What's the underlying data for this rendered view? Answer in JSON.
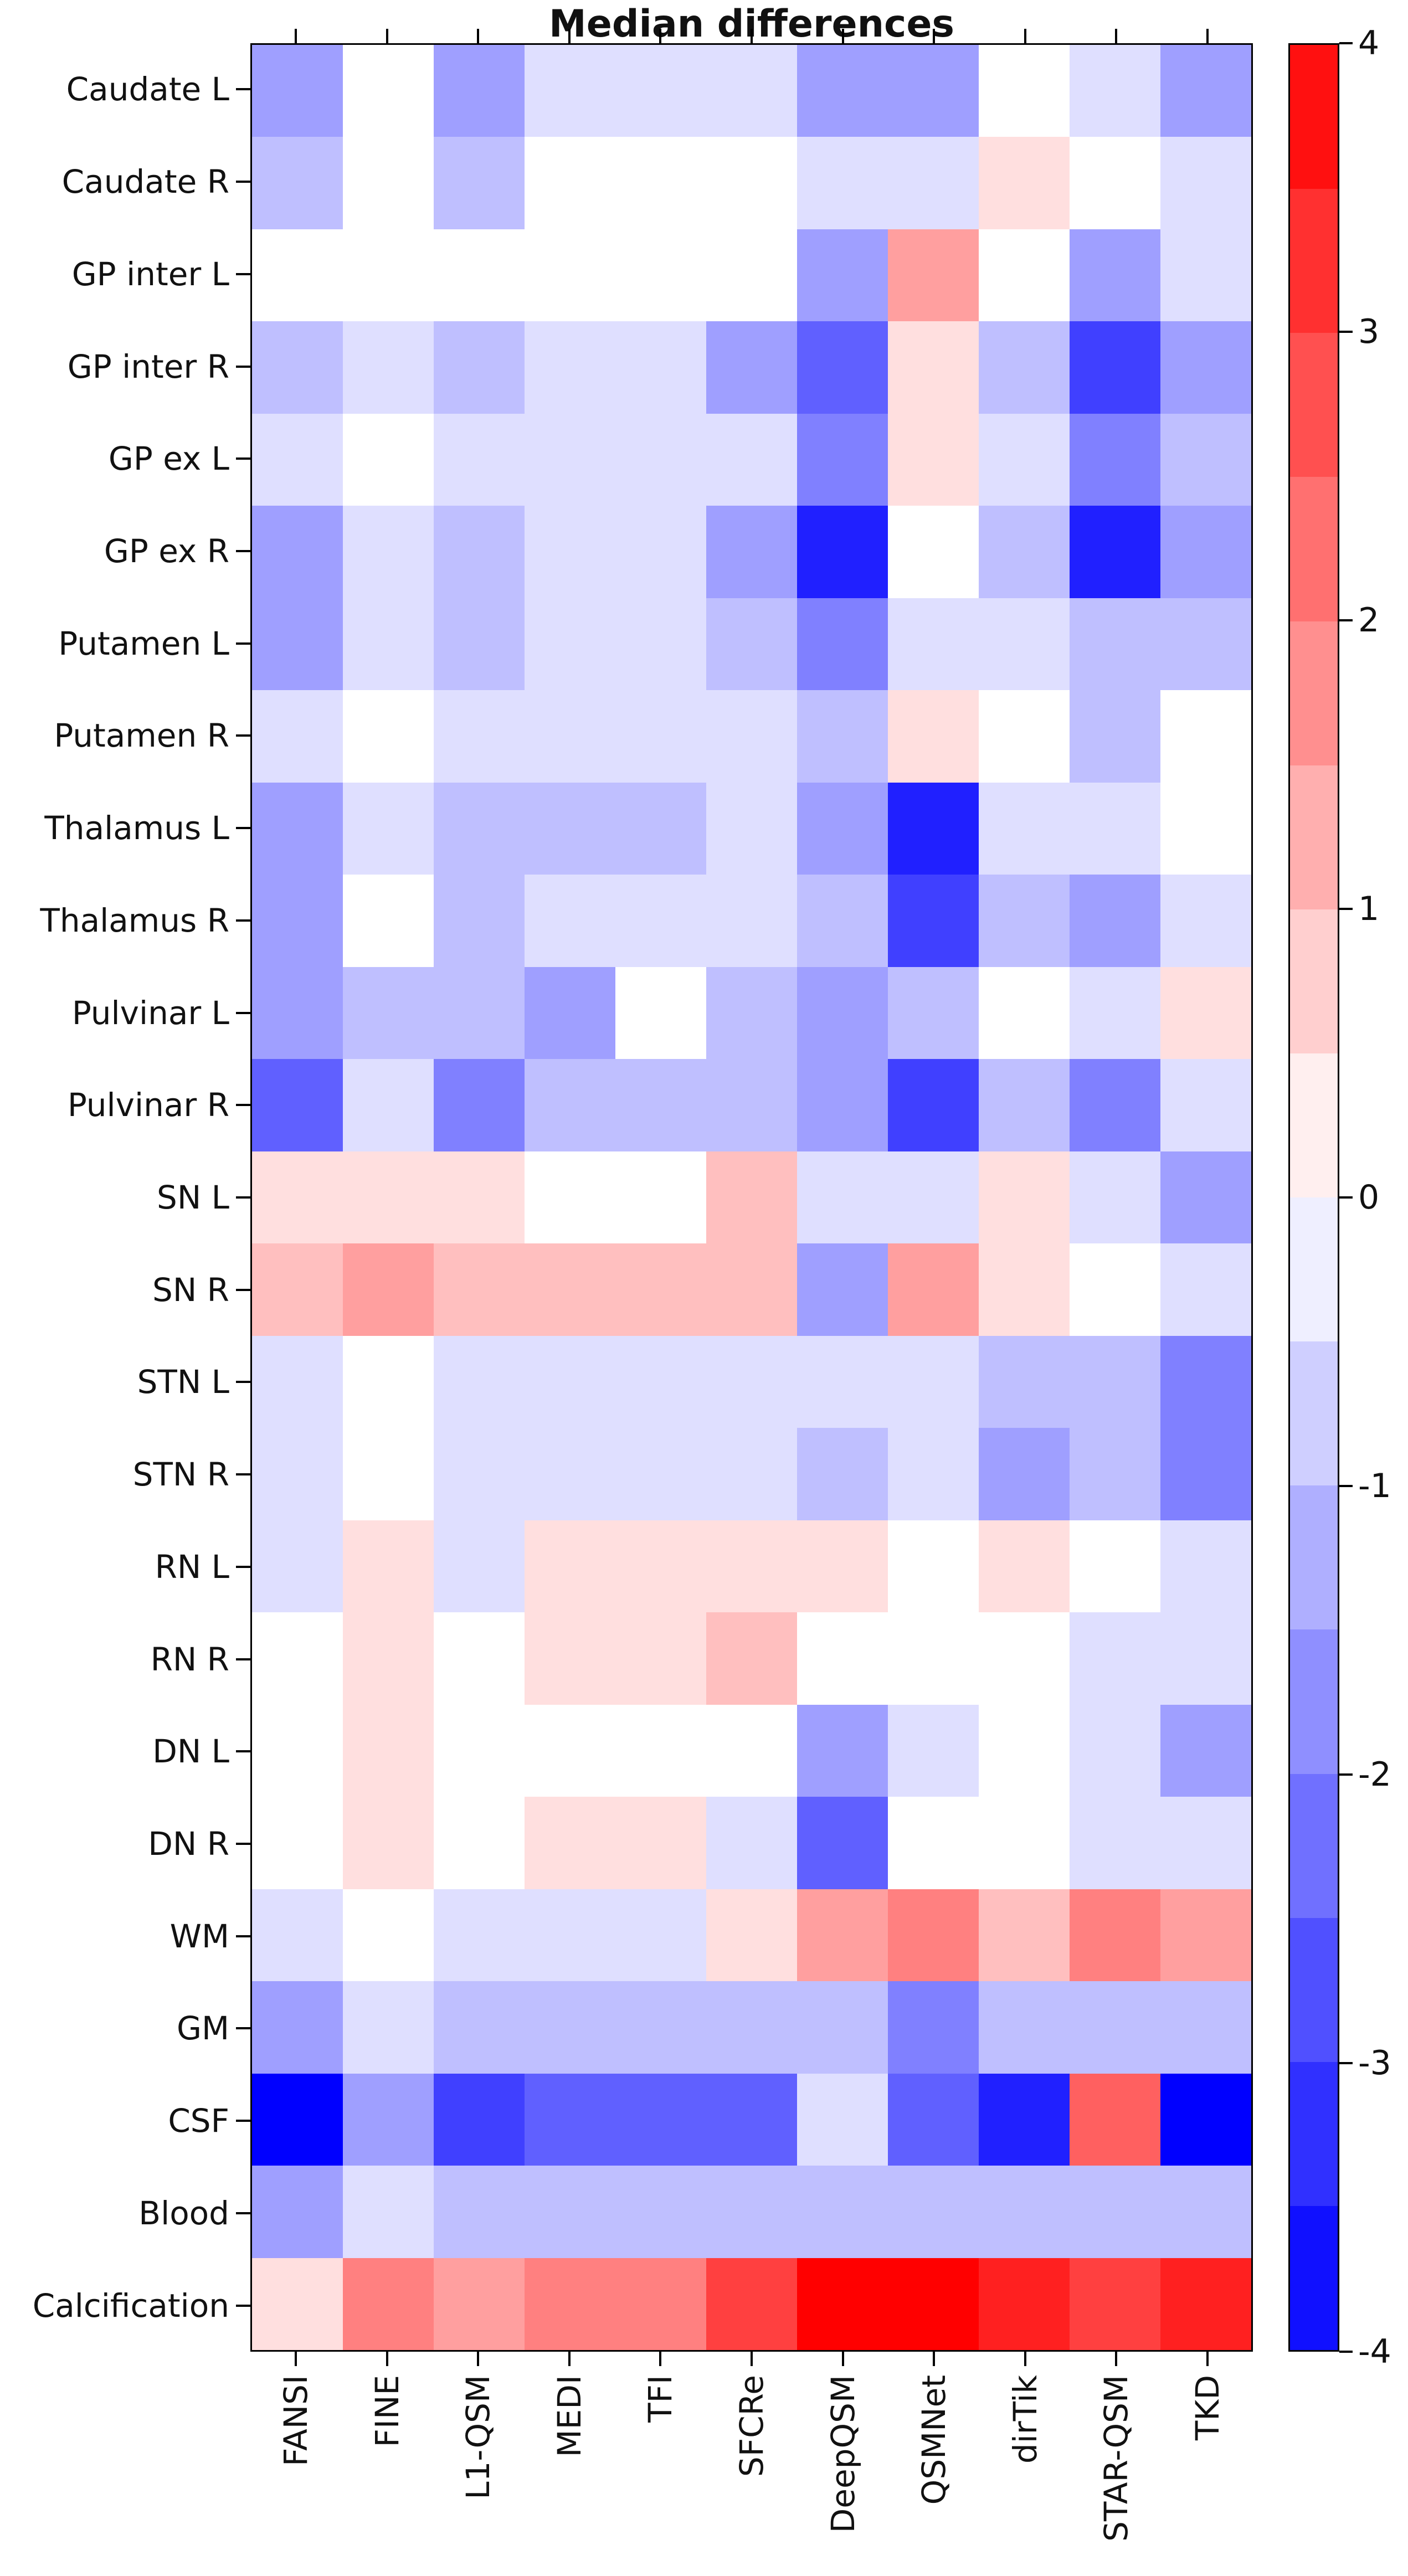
{
  "title": "Median differences",
  "chart_data": {
    "type": "heatmap",
    "title": "Median differences",
    "columns": [
      "FANSI",
      "FINE",
      "L1-QSM",
      "MEDI",
      "TFI",
      "SFCRe",
      "DeepQSM",
      "QSMNet",
      "dirTik",
      "STAR-QSM",
      "TKD"
    ],
    "rows": [
      "Caudate L",
      "Caudate R",
      "GP inter L",
      "GP inter R",
      "GP ex L",
      "GP ex R",
      "Putamen L",
      "Putamen R",
      "Thalamus L",
      "Thalamus R",
      "Pulvinar L",
      "Pulvinar R",
      "SN L",
      "SN R",
      "STN L",
      "STN R",
      "RN L",
      "RN R",
      "DN L",
      "DN R",
      "WM",
      "GM",
      "CSF",
      "Blood",
      "Calcification"
    ],
    "values": [
      [
        -1.5,
        0,
        -1.5,
        -0.5,
        -0.5,
        -0.5,
        -1.5,
        -1.5,
        0,
        -0.5,
        -1.5
      ],
      [
        -1,
        0,
        -1,
        0,
        0,
        0,
        -0.5,
        -0.5,
        0.5,
        0,
        -0.5
      ],
      [
        0,
        0,
        0,
        0,
        0,
        0,
        -1.5,
        1.5,
        0,
        -1.5,
        -0.5
      ],
      [
        -1,
        -0.5,
        -1,
        -0.5,
        -0.5,
        -1.5,
        -2.5,
        0.5,
        -1,
        -3,
        -1.5
      ],
      [
        -0.5,
        0,
        -0.5,
        -0.5,
        -0.5,
        -0.5,
        -2,
        0.5,
        -0.5,
        -2,
        -1
      ],
      [
        -1.5,
        -0.5,
        -1,
        -0.5,
        -0.5,
        -1.5,
        -3.5,
        0,
        -1,
        -3.5,
        -1.5
      ],
      [
        -1.5,
        -0.5,
        -1,
        -0.5,
        -0.5,
        -1,
        -2,
        -0.5,
        -0.5,
        -1,
        -1
      ],
      [
        -0.5,
        0,
        -0.5,
        -0.5,
        -0.5,
        -0.5,
        -1,
        0.5,
        0,
        -1,
        0
      ],
      [
        -1.5,
        -0.5,
        -1,
        -1,
        -1,
        -0.5,
        -1.5,
        -3.5,
        -0.5,
        -0.5,
        0
      ],
      [
        -1.5,
        0,
        -1,
        -0.5,
        -0.5,
        -0.5,
        -1,
        -3,
        -1,
        -1.5,
        -0.5
      ],
      [
        -1.5,
        -1,
        -1,
        -1.5,
        0,
        -1,
        -1.5,
        -1,
        0,
        -0.5,
        0.5
      ],
      [
        -2.5,
        -0.5,
        -2,
        -1,
        -1,
        -1,
        -1.5,
        -3,
        -1,
        -2,
        -0.5
      ],
      [
        0.5,
        0.5,
        0.5,
        0,
        0,
        1,
        -0.5,
        -0.5,
        0.5,
        -0.5,
        -1.5
      ],
      [
        1,
        1.5,
        1,
        1,
        1,
        1,
        -1.5,
        1.5,
        0.5,
        0,
        -0.5
      ],
      [
        -0.5,
        0,
        -0.5,
        -0.5,
        -0.5,
        -0.5,
        -0.5,
        -0.5,
        -1,
        -1,
        -2
      ],
      [
        -0.5,
        0,
        -0.5,
        -0.5,
        -0.5,
        -0.5,
        -1,
        -0.5,
        -1.5,
        -1,
        -2
      ],
      [
        -0.5,
        0.5,
        -0.5,
        0.5,
        0.5,
        0.5,
        0.5,
        0,
        0.5,
        0,
        -0.5
      ],
      [
        0,
        0.5,
        0,
        0.5,
        0.5,
        1,
        0,
        0,
        0,
        -0.5,
        -0.5
      ],
      [
        0,
        0.5,
        0,
        0,
        0,
        0,
        -1.5,
        -0.5,
        0,
        -0.5,
        -1.5
      ],
      [
        0,
        0.5,
        0,
        0.5,
        0.5,
        -0.5,
        -2.5,
        0,
        0,
        -0.5,
        -0.5
      ],
      [
        -0.5,
        0,
        -0.5,
        -0.5,
        -0.5,
        0.5,
        1.5,
        2,
        1,
        2,
        1.5
      ],
      [
        -1.5,
        -0.5,
        -1,
        -1,
        -1,
        -1,
        -1,
        -2,
        -1,
        -1,
        -1
      ],
      [
        -4,
        -1.5,
        -3,
        -2.5,
        -2.5,
        -2.5,
        -0.5,
        -2.5,
        -3.5,
        2.5,
        -4
      ],
      [
        -1.5,
        -0.5,
        -1,
        -1,
        -1,
        -1,
        -1,
        -1,
        -1,
        -1,
        -1
      ],
      [
        0.5,
        2,
        1.5,
        2,
        2,
        3,
        4,
        4,
        3.5,
        3,
        3.5
      ]
    ],
    "vmin": -4,
    "vmax": 4,
    "colormap": "blue-white-red",
    "colorbar_steps": 16,
    "colorbar_ticks": [
      4,
      3,
      2,
      1,
      0,
      -1,
      -2,
      -3,
      -4
    ],
    "legend_position": "right",
    "grid": false
  }
}
